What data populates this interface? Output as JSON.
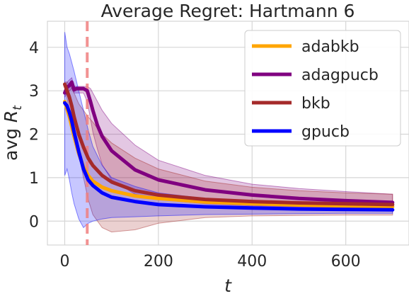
{
  "chart_data": {
    "type": "line",
    "title": "Average Regret: Hartmann 6",
    "xlabel": "t",
    "ylabel_prefix": "avg ",
    "ylabel_symbol": "R",
    "ylabel_subscript": "t",
    "xlim": [
      -37,
      735
    ],
    "ylim": [
      -0.55,
      4.6
    ],
    "xticks": [
      0,
      200,
      400,
      600
    ],
    "yticks": [
      0,
      1,
      2,
      3,
      4
    ],
    "grid": true,
    "legend_position": "top-right",
    "vline": {
      "x": 48,
      "color": "#f08080",
      "style": "dashed"
    },
    "series": [
      {
        "name": "adabkb",
        "color": "#ffa500",
        "x": [
          0,
          10,
          20,
          30,
          40,
          50,
          60,
          80,
          100,
          150,
          200,
          300,
          400,
          500,
          600,
          700
        ],
        "y": [
          2.75,
          2.4,
          1.95,
          1.55,
          1.25,
          1.05,
          0.92,
          0.78,
          0.7,
          0.58,
          0.52,
          0.44,
          0.4,
          0.37,
          0.35,
          0.33
        ]
      },
      {
        "name": "adagpucb",
        "color": "#800080",
        "x": [
          0,
          5,
          10,
          15,
          20,
          25,
          30,
          40,
          48,
          55,
          60,
          70,
          80,
          100,
          150,
          200,
          300,
          400,
          500,
          600,
          700
        ],
        "y": [
          2.95,
          3.08,
          3.12,
          3.2,
          3.02,
          3.05,
          3.05,
          3.05,
          3.0,
          2.75,
          2.55,
          2.2,
          1.95,
          1.62,
          1.18,
          0.95,
          0.72,
          0.6,
          0.52,
          0.47,
          0.43
        ],
        "band_lower": [
          2.85,
          2.95,
          3.0,
          3.05,
          2.95,
          2.95,
          2.95,
          2.95,
          2.75,
          2.35,
          2.05,
          1.65,
          1.3,
          0.95,
          0.62,
          0.5,
          0.4,
          0.35,
          0.33,
          0.31,
          0.3
        ],
        "band_upper": [
          3.05,
          3.2,
          3.25,
          3.3,
          3.1,
          3.1,
          3.1,
          3.1,
          3.1,
          3.05,
          2.95,
          2.75,
          2.55,
          2.25,
          1.75,
          1.4,
          1.05,
          0.85,
          0.75,
          0.68,
          0.62
        ]
      },
      {
        "name": "bkb",
        "color": "#a52a2a",
        "x": [
          0,
          5,
          10,
          15,
          20,
          30,
          40,
          50,
          60,
          80,
          100,
          150,
          200,
          300,
          400,
          500,
          600,
          700
        ],
        "y": [
          3.15,
          3.0,
          2.85,
          2.65,
          2.4,
          2.0,
          1.7,
          1.45,
          1.28,
          1.05,
          0.9,
          0.7,
          0.6,
          0.5,
          0.45,
          0.42,
          0.4,
          0.38
        ],
        "band_lower": [
          3.1,
          2.8,
          2.55,
          2.3,
          2.05,
          1.55,
          1.0,
          0.5,
          0.15,
          -0.15,
          -0.25,
          -0.2,
          -0.05,
          0.08,
          0.12,
          0.13,
          0.14,
          0.14
        ],
        "band_upper": [
          3.2,
          3.2,
          3.15,
          3.05,
          2.95,
          2.7,
          2.55,
          2.4,
          2.28,
          2.0,
          1.8,
          1.45,
          1.2,
          0.92,
          0.78,
          0.7,
          0.65,
          0.62
        ]
      },
      {
        "name": "gpucb",
        "color": "#0000ff",
        "x": [
          0,
          5,
          10,
          15,
          20,
          30,
          40,
          50,
          60,
          80,
          100,
          150,
          200,
          300,
          400,
          500,
          600,
          700
        ],
        "y": [
          2.72,
          2.65,
          2.5,
          2.3,
          2.05,
          1.6,
          1.2,
          0.95,
          0.82,
          0.65,
          0.55,
          0.45,
          0.38,
          0.33,
          0.3,
          0.28,
          0.27,
          0.26
        ],
        "band_lower": [
          1.05,
          1.2,
          0.95,
          0.65,
          0.4,
          0.05,
          -0.15,
          -0.05,
          0.0,
          0.05,
          0.08,
          0.1,
          0.12,
          0.15,
          0.16,
          0.17,
          0.18,
          0.18
        ],
        "band_upper": [
          4.35,
          4.0,
          3.85,
          3.65,
          3.45,
          3.0,
          2.55,
          2.1,
          1.72,
          1.28,
          1.0,
          0.8,
          0.65,
          0.52,
          0.44,
          0.4,
          0.37,
          0.35
        ]
      }
    ]
  }
}
